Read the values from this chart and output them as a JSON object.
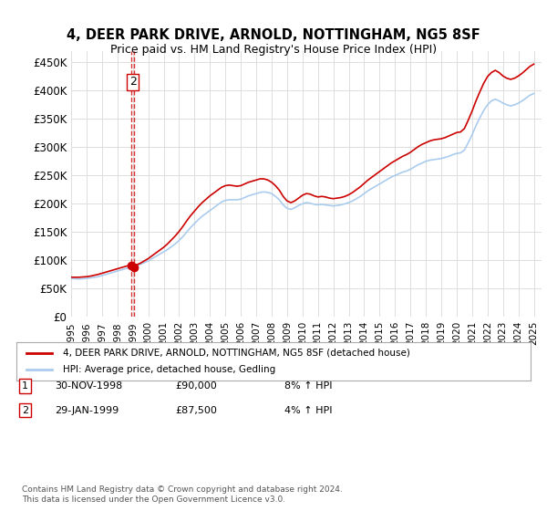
{
  "title": "4, DEER PARK DRIVE, ARNOLD, NOTTINGHAM, NG5 8SF",
  "subtitle": "Price paid vs. HM Land Registry's House Price Index (HPI)",
  "ylabel_ticks": [
    "£0",
    "£50K",
    "£100K",
    "£150K",
    "£200K",
    "£250K",
    "£300K",
    "£350K",
    "£400K",
    "£450K"
  ],
  "ylim": [
    0,
    470000
  ],
  "yticks": [
    0,
    50000,
    100000,
    150000,
    200000,
    250000,
    300000,
    350000,
    400000,
    450000
  ],
  "x_start_year": 1995.0,
  "x_end_year": 2025.5,
  "bg_color": "#ffffff",
  "grid_color": "#dddddd",
  "line_red": "#cc0000",
  "line_blue": "#aaccee",
  "marker_color": "#cc0000",
  "transaction1": {
    "date_num": 1998.92,
    "price": 90000,
    "label": "1",
    "marker_size": 8
  },
  "transaction2": {
    "date_num": 1999.08,
    "price": 87500,
    "label": "2",
    "marker_size": 8
  },
  "legend_entries": [
    "4, DEER PARK DRIVE, ARNOLD, NOTTINGHAM, NG5 8SF (detached house)",
    "HPI: Average price, detached house, Gedling"
  ],
  "table_rows": [
    [
      "1",
      "30-NOV-1998",
      "£90,000",
      "8% ↑ HPI"
    ],
    [
      "2",
      "29-JAN-1999",
      "£87,500",
      "4% ↑ HPI"
    ]
  ],
  "footer": "Contains HM Land Registry data © Crown copyright and database right 2024.\nThis data is licensed under the Open Government Licence v3.0.",
  "hpi_data": {
    "years": [
      1995.0,
      1995.25,
      1995.5,
      1995.75,
      1996.0,
      1996.25,
      1996.5,
      1996.75,
      1997.0,
      1997.25,
      1997.5,
      1997.75,
      1998.0,
      1998.25,
      1998.5,
      1998.75,
      1999.0,
      1999.25,
      1999.5,
      1999.75,
      2000.0,
      2000.25,
      2000.5,
      2000.75,
      2001.0,
      2001.25,
      2001.5,
      2001.75,
      2002.0,
      2002.25,
      2002.5,
      2002.75,
      2003.0,
      2003.25,
      2003.5,
      2003.75,
      2004.0,
      2004.25,
      2004.5,
      2004.75,
      2005.0,
      2005.25,
      2005.5,
      2005.75,
      2006.0,
      2006.25,
      2006.5,
      2006.75,
      2007.0,
      2007.25,
      2007.5,
      2007.75,
      2008.0,
      2008.25,
      2008.5,
      2008.75,
      2009.0,
      2009.25,
      2009.5,
      2009.75,
      2010.0,
      2010.25,
      2010.5,
      2010.75,
      2011.0,
      2011.25,
      2011.5,
      2011.75,
      2012.0,
      2012.25,
      2012.5,
      2012.75,
      2013.0,
      2013.25,
      2013.5,
      2013.75,
      2014.0,
      2014.25,
      2014.5,
      2014.75,
      2015.0,
      2015.25,
      2015.5,
      2015.75,
      2016.0,
      2016.25,
      2016.5,
      2016.75,
      2017.0,
      2017.25,
      2017.5,
      2017.75,
      2018.0,
      2018.25,
      2018.5,
      2018.75,
      2019.0,
      2019.25,
      2019.5,
      2019.75,
      2020.0,
      2020.25,
      2020.5,
      2020.75,
      2021.0,
      2021.25,
      2021.5,
      2021.75,
      2022.0,
      2022.25,
      2022.5,
      2022.75,
      2023.0,
      2023.25,
      2023.5,
      2023.75,
      2024.0,
      2024.25,
      2024.5,
      2024.75,
      2025.0
    ],
    "hpi_values": [
      68000,
      67500,
      67000,
      67500,
      68000,
      69000,
      70000,
      71000,
      73000,
      75000,
      77000,
      79000,
      81000,
      83000,
      85000,
      87000,
      88000,
      90000,
      93000,
      96000,
      99000,
      103000,
      107000,
      111000,
      115000,
      119000,
      124000,
      129000,
      135000,
      142000,
      150000,
      158000,
      165000,
      172000,
      178000,
      183000,
      188000,
      193000,
      198000,
      203000,
      206000,
      207000,
      207000,
      207000,
      208000,
      211000,
      214000,
      216000,
      218000,
      220000,
      221000,
      220000,
      218000,
      213000,
      207000,
      198000,
      192000,
      190000,
      193000,
      197000,
      200000,
      202000,
      201000,
      199000,
      198000,
      199000,
      198000,
      197000,
      196000,
      197000,
      198000,
      200000,
      202000,
      205000,
      209000,
      213000,
      218000,
      223000,
      227000,
      231000,
      235000,
      239000,
      243000,
      247000,
      250000,
      253000,
      256000,
      258000,
      261000,
      265000,
      269000,
      272000,
      275000,
      277000,
      278000,
      279000,
      280000,
      282000,
      284000,
      287000,
      289000,
      290000,
      295000,
      308000,
      322000,
      338000,
      352000,
      365000,
      375000,
      382000,
      385000,
      382000,
      378000,
      375000,
      373000,
      375000,
      378000,
      382000,
      387000,
      392000,
      395000
    ],
    "red_values": [
      70000,
      70000,
      70000,
      70500,
      71000,
      72000,
      73500,
      75000,
      77000,
      79000,
      81000,
      83000,
      85000,
      87000,
      89000,
      91000,
      91500,
      92000,
      95000,
      99000,
      103000,
      108000,
      113000,
      118000,
      123000,
      129000,
      136000,
      143000,
      151000,
      160000,
      170000,
      179000,
      187000,
      195000,
      202000,
      208000,
      214000,
      219000,
      224000,
      229000,
      232000,
      233000,
      232000,
      231000,
      232000,
      235000,
      238000,
      240000,
      242000,
      244000,
      244000,
      242000,
      238000,
      232000,
      224000,
      213000,
      205000,
      202000,
      205000,
      210000,
      215000,
      218000,
      217000,
      214000,
      212000,
      213000,
      212000,
      210000,
      209000,
      210000,
      211000,
      213000,
      216000,
      220000,
      225000,
      230000,
      236000,
      242000,
      247000,
      252000,
      257000,
      262000,
      267000,
      272000,
      276000,
      280000,
      284000,
      287000,
      291000,
      296000,
      301000,
      305000,
      308000,
      311000,
      313000,
      314000,
      315000,
      317000,
      320000,
      323000,
      326000,
      327000,
      333000,
      348000,
      364000,
      382000,
      398000,
      413000,
      425000,
      432000,
      436000,
      432000,
      426000,
      422000,
      420000,
      422000,
      426000,
      431000,
      437000,
      443000,
      447000
    ]
  },
  "xtick_years": [
    1995,
    1996,
    1997,
    1998,
    1999,
    2000,
    2001,
    2002,
    2003,
    2004,
    2005,
    2006,
    2007,
    2008,
    2009,
    2010,
    2011,
    2012,
    2013,
    2014,
    2015,
    2016,
    2017,
    2018,
    2019,
    2020,
    2021,
    2022,
    2023,
    2024,
    2025
  ]
}
